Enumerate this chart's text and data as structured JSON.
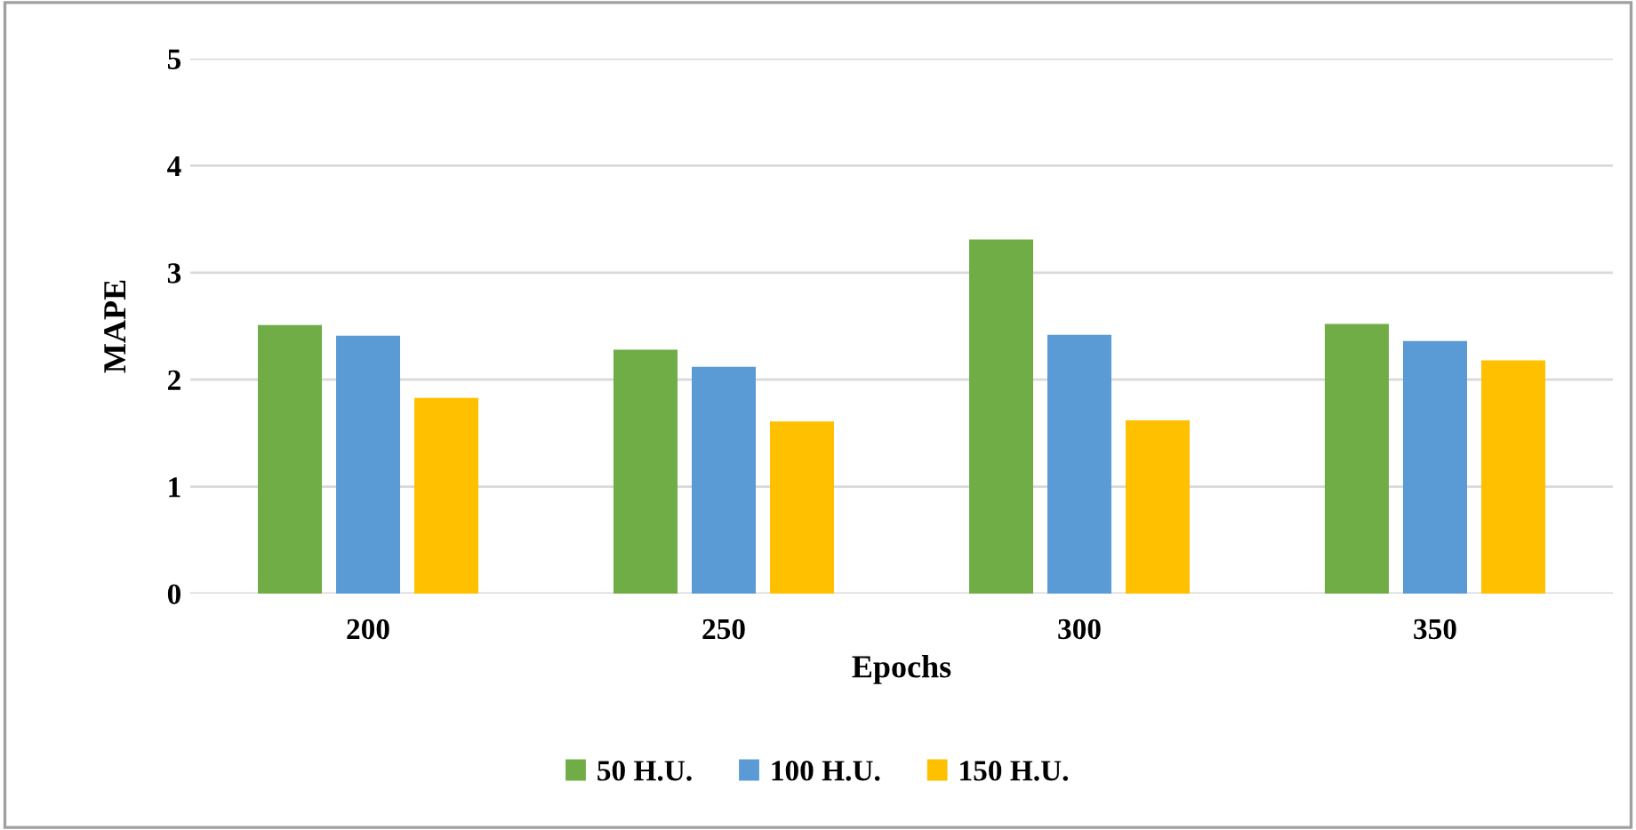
{
  "chart_data": {
    "type": "bar",
    "xlabel": "Epochs",
    "ylabel": "MAPE",
    "categories": [
      "200",
      "250",
      "300",
      "350"
    ],
    "series": [
      {
        "name": "50 H.U.",
        "color": "#70ad47",
        "values": [
          2.51,
          2.28,
          3.31,
          2.52
        ]
      },
      {
        "name": "100 H.U.",
        "color": "#5b9bd5",
        "values": [
          2.41,
          2.12,
          2.42,
          2.36
        ]
      },
      {
        "name": "150 H.U.",
        "color": "#ffc000",
        "values": [
          1.83,
          1.61,
          1.62,
          2.18
        ]
      }
    ],
    "ylim": [
      0,
      5
    ],
    "yticks": [
      0,
      1,
      2,
      3,
      4,
      5
    ],
    "grid": "y",
    "legend": "bottom"
  }
}
